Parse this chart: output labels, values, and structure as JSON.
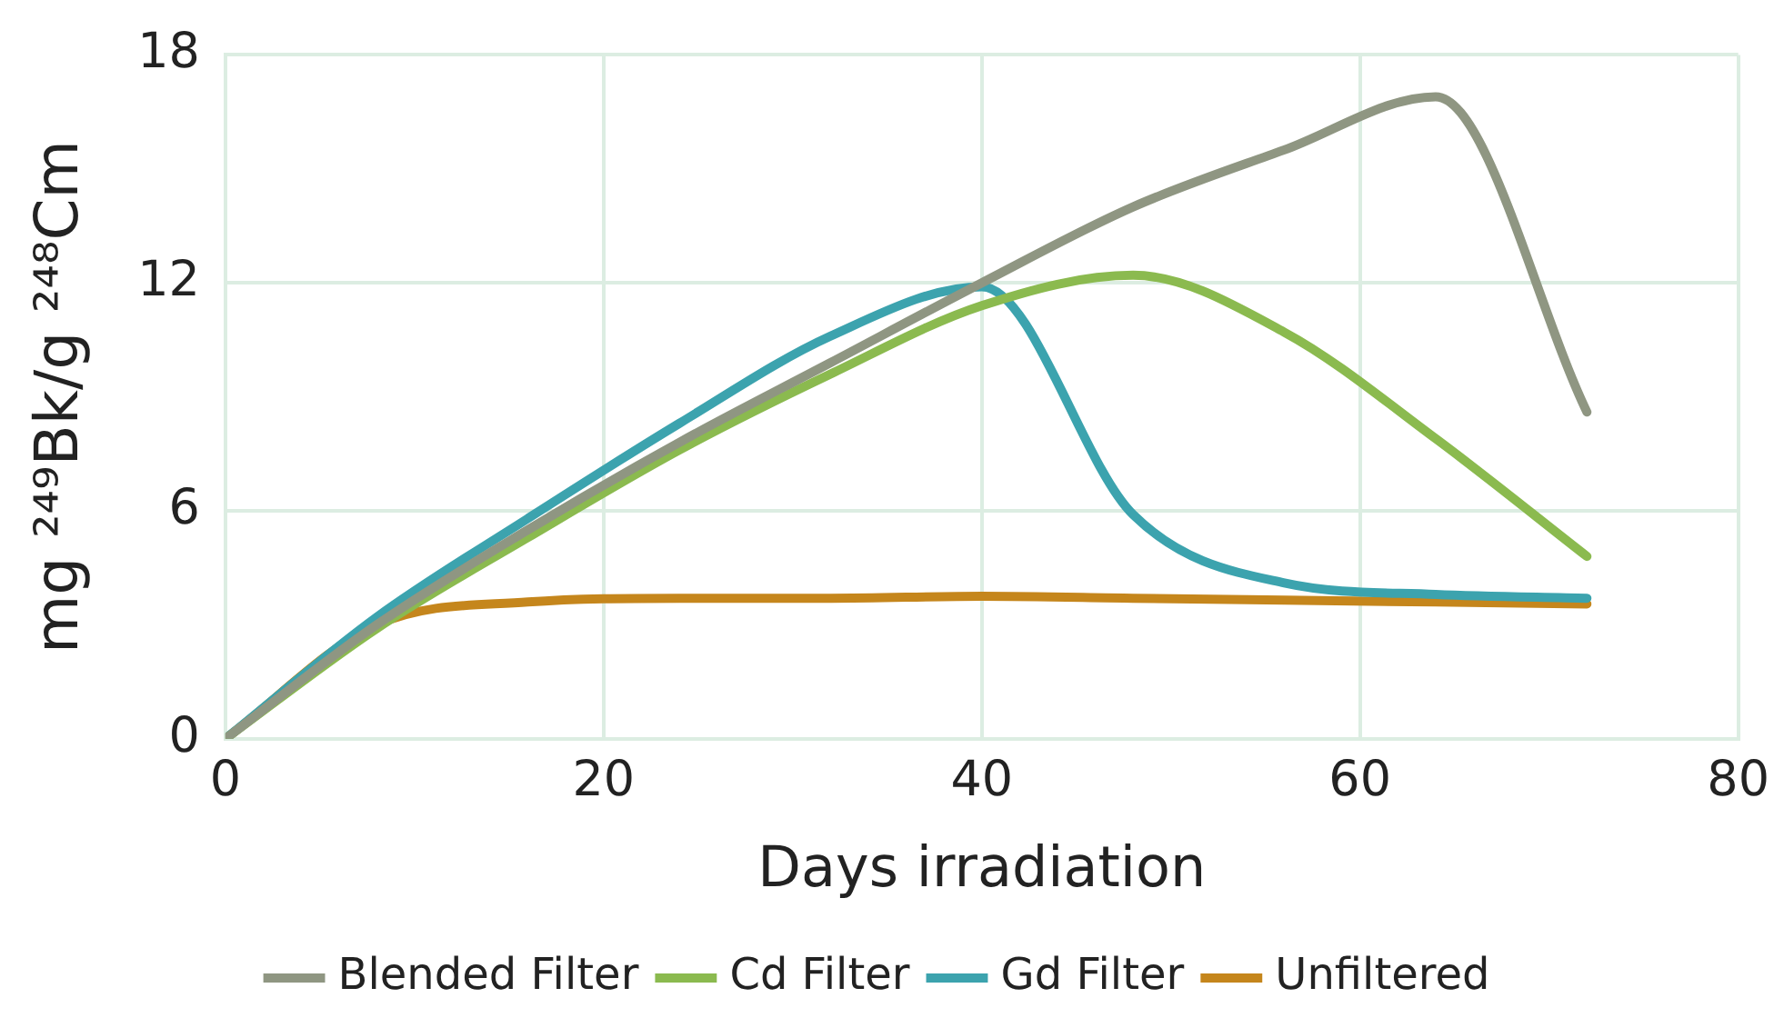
{
  "chart_data": {
    "type": "line",
    "xlabel": "Days irradiation",
    "ylabel": "mg ²⁴⁹Bk/g ²⁴⁸Cm",
    "x": [
      0,
      8,
      16,
      24,
      32,
      40,
      48,
      56,
      64,
      72
    ],
    "series": [
      {
        "name": "Blended Filter",
        "color": "#8f9682",
        "values": [
          0,
          3.0,
          5.5,
          7.8,
          9.9,
          12.0,
          14.0,
          15.5,
          16.9,
          8.6
        ]
      },
      {
        "name": "Cd Filter",
        "color": "#8bba4f",
        "values": [
          0,
          2.9,
          5.3,
          7.6,
          9.6,
          11.4,
          12.2,
          10.7,
          7.9,
          4.8
        ]
      },
      {
        "name": "Gd Filter",
        "color": "#3ca3ae",
        "values": [
          0,
          3.2,
          5.8,
          8.3,
          10.6,
          11.9,
          5.9,
          4.1,
          3.8,
          3.7
        ]
      },
      {
        "name": "Unfiltered",
        "color": "#c5861c",
        "values": [
          0,
          3.0,
          3.6,
          3.7,
          3.7,
          3.75,
          3.7,
          3.65,
          3.6,
          3.55
        ]
      }
    ],
    "xlim": [
      0,
      80
    ],
    "xticks": [
      0,
      20,
      40,
      60,
      80
    ],
    "ylim": [
      0,
      18
    ],
    "yticks": [
      0,
      6,
      12,
      18
    ],
    "grid": true,
    "legend": "bottom",
    "marker": "none",
    "line_style": "solid"
  }
}
